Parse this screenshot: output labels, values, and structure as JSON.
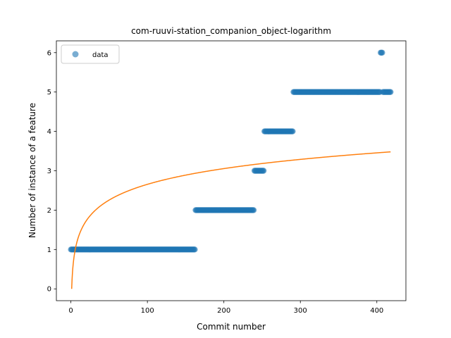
{
  "chart_data": {
    "type": "scatter",
    "title": "com-ruuvi-station_companion_object-logarithm",
    "xlabel": "Commit number",
    "ylabel": "Number of instance of a feature",
    "xlim": [
      -19,
      438
    ],
    "ylim": [
      -0.3,
      6.3
    ],
    "xticks": [
      0,
      100,
      200,
      300,
      400
    ],
    "yticks": [
      0,
      1,
      2,
      3,
      4,
      5,
      6
    ],
    "grid": false,
    "legend": {
      "position": "top-left",
      "entries": [
        "data"
      ]
    },
    "series": [
      {
        "name": "data",
        "kind": "scatter",
        "color": "#1f77b4",
        "segments": [
          {
            "x_start": 0,
            "x_end": 162,
            "y": 1
          },
          {
            "x_start": 163,
            "x_end": 239,
            "y": 2
          },
          {
            "x_start": 240,
            "x_end": 252,
            "y": 3
          },
          {
            "x_start": 253,
            "x_end": 290,
            "y": 4
          },
          {
            "x_start": 291,
            "x_end": 404,
            "y": 5
          },
          {
            "x_start": 405,
            "x_end": 407,
            "y": 6
          },
          {
            "x_start": 408,
            "x_end": 418,
            "y": 5
          }
        ]
      },
      {
        "kind": "line",
        "color": "#ff7f0e",
        "function": "log",
        "coef": 0.5766,
        "x_range": [
          1,
          418
        ]
      }
    ]
  }
}
